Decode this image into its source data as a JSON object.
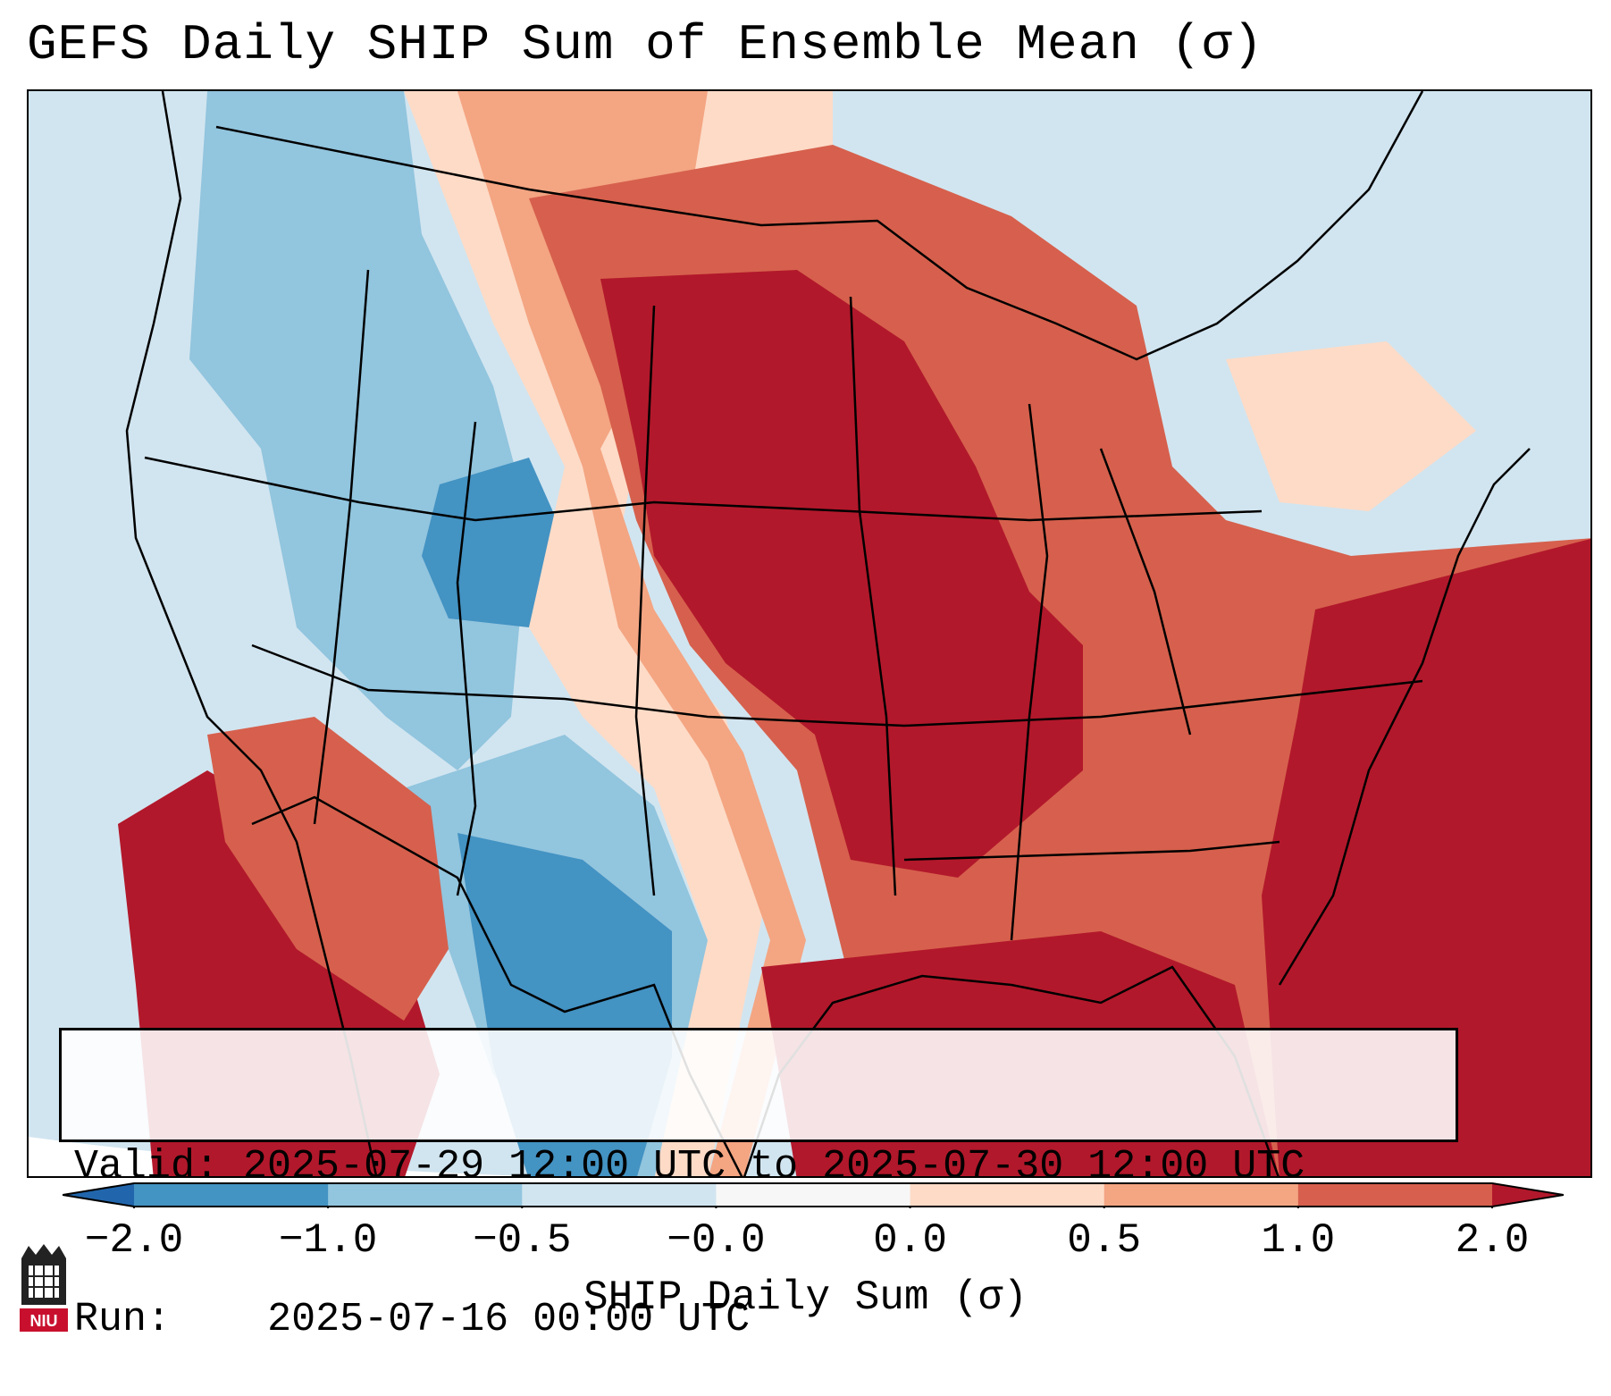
{
  "title": "GEFS Daily SHIP Sum of Ensemble Mean (σ)",
  "info": {
    "valid_label": "Valid:",
    "valid_value": "2025-07-29 12:00 UTC to 2025-07-30 12:00 UTC",
    "run_label": "Run:",
    "run_value": "2025-07-16 00:00 UTC"
  },
  "colorbar": {
    "label": "SHIP Daily Sum (σ)",
    "ticks": [
      "−2.0",
      "−1.0",
      "−0.5",
      "−0.0",
      "0.0",
      "0.5",
      "1.0",
      "2.0"
    ],
    "colors": [
      "#2166ac",
      "#4393c3",
      "#92c5de",
      "#d1e5f0",
      "#f7f7f7",
      "#fddbc7",
      "#f4a582",
      "#d6604d",
      "#b2182b"
    ]
  },
  "field": {
    "description_values": {
      "west_coast": "-0.5 to -0.0",
      "rockies": "-1.0 to -0.5",
      "plains_midwest": ">2.0",
      "south_texas": "-2.0 to -1.0",
      "gulf_atlantic": ">2.0"
    }
  },
  "logo": {
    "text": "NIU"
  }
}
